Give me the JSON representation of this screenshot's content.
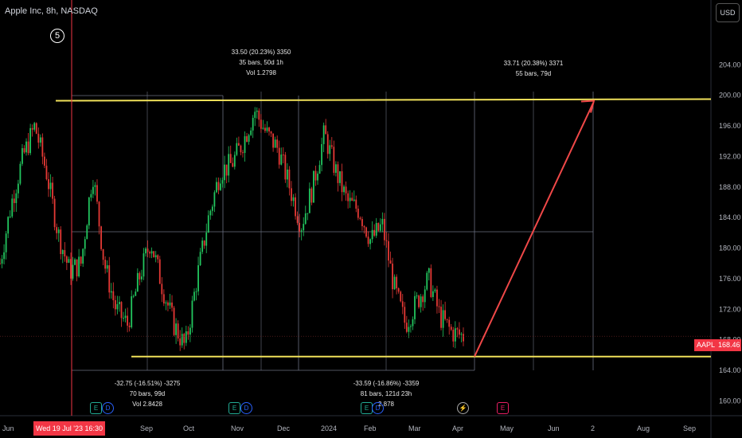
{
  "header": {
    "title": "Apple Inc, 8h, NASDAQ",
    "marker": "5",
    "currency": "USD"
  },
  "price": {
    "symbol": "AAPL",
    "last": "168.46"
  },
  "crosshair": {
    "date_label": "Wed 19 Jul '23  16:30"
  },
  "annotations": {
    "up1": [
      "33.50 (20.23%) 3350",
      "35 bars, 50d 1h",
      "Vol 1.2798"
    ],
    "up2": [
      "33.71 (20.38%) 3371",
      "55 bars, 79d"
    ],
    "down1": [
      "-32.75 (-16.51%) -3275",
      "70 bars, 99d",
      "Vol 2.8428"
    ],
    "down2": [
      "-33.59 (-16.86%) -3359",
      "81 bars, 121d 23h",
      "2.878"
    ]
  },
  "events": [
    {
      "name": "earnings",
      "glyph": "E"
    },
    {
      "name": "dividend",
      "glyph": "D"
    },
    {
      "name": "earnings",
      "glyph": "E"
    },
    {
      "name": "dividend",
      "glyph": "D"
    },
    {
      "name": "earnings",
      "glyph": "E"
    },
    {
      "name": "dividend",
      "glyph": "D"
    },
    {
      "name": "split",
      "glyph": "⚡"
    },
    {
      "name": "earnings",
      "glyph": "E"
    }
  ],
  "colors": {
    "up": "#26a69a",
    "down": "#ef5350",
    "bull": "#22c55e",
    "bear": "#e53935",
    "channel": "#f0e15a",
    "arrow": "#f04848",
    "accent": "#f23645"
  },
  "chart_data": {
    "type": "candlestick",
    "title": "Apple Inc, 8h, NASDAQ",
    "xlabel": "",
    "ylabel": "",
    "x_ticks": [
      "Jun",
      "Sep",
      "Oct",
      "Nov",
      "Dec",
      "2024",
      "Feb",
      "Mar",
      "Apr",
      "May",
      "Jun",
      "2",
      "Aug",
      "Sep"
    ],
    "y_ticks": [
      160,
      164,
      168,
      172,
      176,
      180,
      184,
      188,
      192,
      196,
      200,
      204
    ],
    "ylim": [
      160,
      208
    ],
    "series": [
      {
        "type": "close-path",
        "points": [
          [
            "Jun",
            178
          ],
          [
            "Jun",
            186
          ],
          [
            "Jul",
            192
          ],
          [
            "Jul 19",
            196
          ],
          [
            "Aug",
            190
          ],
          [
            "Aug",
            182
          ],
          [
            "Aug",
            177
          ],
          [
            "Sep",
            178
          ],
          [
            "Sep",
            190
          ],
          [
            "Sep",
            178
          ],
          [
            "Sep",
            172
          ],
          [
            "Oct",
            170
          ],
          [
            "Oct",
            176
          ],
          [
            "Oct",
            181
          ],
          [
            "Oct",
            175
          ],
          [
            "Oct",
            170
          ],
          [
            "Nov",
            167
          ],
          [
            "Nov",
            176
          ],
          [
            "Nov",
            184
          ],
          [
            "Nov",
            190
          ],
          [
            "Nov",
            191
          ],
          [
            "Dec",
            194
          ],
          [
            "Dec",
            198
          ],
          [
            "Dec",
            195
          ],
          [
            "Dec",
            193
          ],
          [
            "Dec",
            188
          ],
          [
            "2024",
            183
          ],
          [
            "2024",
            188
          ],
          [
            "2024",
            195
          ],
          [
            "Jan",
            190
          ],
          [
            "Jan",
            186
          ],
          [
            "Feb",
            185
          ],
          [
            "Feb",
            181
          ],
          [
            "Feb",
            183
          ],
          [
            "Mar",
            175
          ],
          [
            "Mar",
            170
          ],
          [
            "Mar",
            173
          ],
          [
            "Mar",
            176
          ],
          [
            "Apr",
            171
          ],
          [
            "Apr",
            169
          ],
          [
            "Apr",
            168.46
          ]
        ]
      }
    ],
    "drawings": {
      "channel_top": 199.4,
      "channel_bottom": 165.8,
      "price_line": 168.46,
      "projection_arrow": {
        "from": [
          "Apr",
          165.8
        ],
        "to": [
          "Jun",
          199.4
        ]
      }
    }
  }
}
